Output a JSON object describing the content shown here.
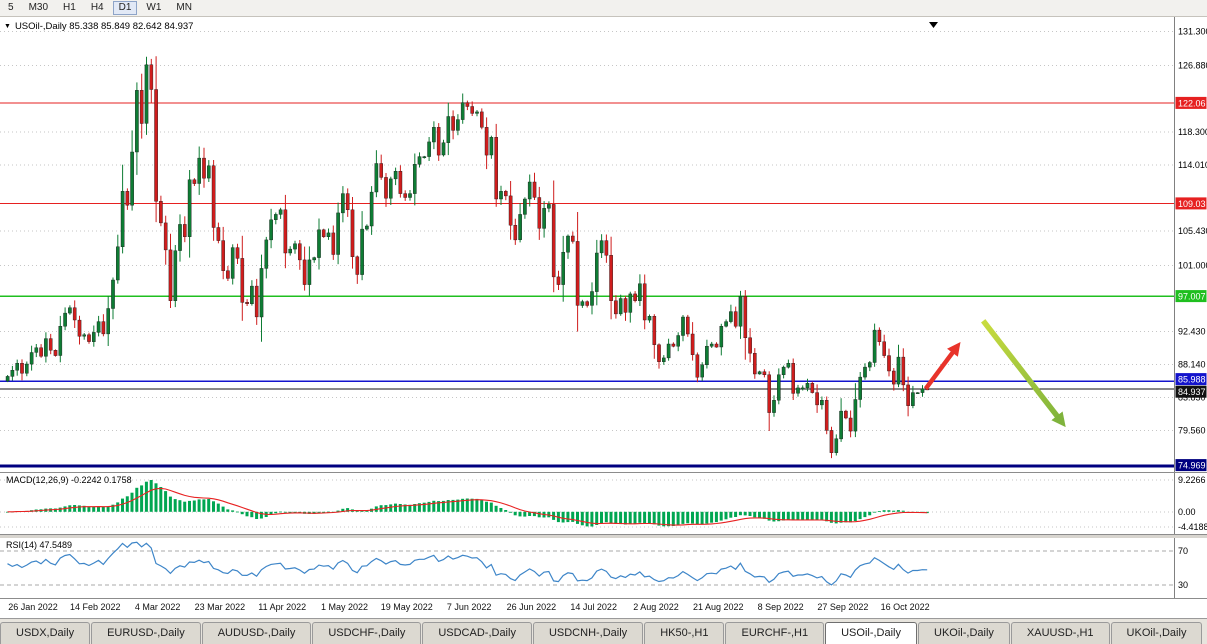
{
  "toolbar": {
    "periods": [
      "5",
      "M30",
      "H1",
      "H4",
      "D1",
      "W1",
      "MN"
    ],
    "active_index": 4
  },
  "chart": {
    "title_line": "USOil-,Daily 85.338 85.849 82.642 84.937"
  },
  "chart_data": {
    "type": "candlestick",
    "symbol": "USOil-",
    "timeframe": "Daily",
    "ohlc": {
      "open": 85.338,
      "high": 85.849,
      "low": 82.642,
      "close": 84.937
    },
    "y_range": [
      74.2,
      133.2
    ],
    "y_axis_ticks": [
      131.3,
      126.88,
      118.3,
      114.01,
      105.43,
      101.0,
      92.43,
      88.14,
      83.85,
      79.56
    ],
    "x_labels": [
      "26 Jan 2022",
      "14 Feb 2022",
      "4 Mar 2022",
      "23 Mar 2022",
      "11 Apr 2022",
      "1 May 2022",
      "19 May 2022",
      "7 Jun 2022",
      "26 Jun 2022",
      "14 Jul 2022",
      "2 Aug 2022",
      "21 Aug 2022",
      "8 Sep 2022",
      "27 Sep 2022",
      "16 Oct 2022"
    ],
    "closes": [
      86.6,
      87.4,
      88.3,
      87.0,
      88.2,
      89.7,
      90.3,
      89.2,
      91.5,
      90.0,
      89.3,
      93.1,
      94.8,
      95.5,
      93.9,
      91.8,
      92.0,
      91.1,
      92.3,
      93.7,
      92.1,
      95.4,
      99.1,
      103.4,
      110.6,
      108.8,
      115.7,
      123.7,
      119.4,
      127.0,
      123.8,
      109.3,
      106.5,
      103.0,
      96.4,
      102.9,
      106.3,
      104.7,
      112.1,
      111.6,
      114.9,
      112.3,
      113.9,
      105.9,
      104.2,
      100.3,
      99.3,
      103.3,
      101.9,
      96.2,
      96.0,
      98.3,
      94.3,
      100.6,
      104.3,
      106.9,
      107.6,
      108.2,
      102.6,
      103.1,
      103.8,
      101.7,
      98.5,
      101.7,
      102.0,
      105.6,
      104.7,
      105.2,
      102.4,
      107.8,
      110.3,
      108.2,
      102.1,
      99.8,
      105.7,
      106.1,
      110.5,
      114.2,
      112.4,
      109.7,
      112.2,
      113.2,
      110.3,
      109.8,
      110.3,
      114.1,
      115.1,
      115.1,
      117.0,
      118.9,
      115.3,
      116.9,
      120.3,
      118.5,
      119.9,
      122.1,
      121.6,
      120.7,
      120.9,
      118.9,
      115.3,
      117.6,
      109.6,
      110.6,
      110.0,
      106.2,
      104.3,
      107.6,
      109.6,
      111.8,
      109.8,
      105.8,
      108.4,
      108.9,
      99.5,
      98.5,
      102.7,
      104.8,
      104.1,
      95.8,
      96.3,
      95.8,
      97.6,
      102.6,
      104.2,
      102.3,
      96.4,
      94.7,
      96.7,
      94.9,
      97.3,
      96.4,
      98.6,
      93.9,
      94.4,
      90.7,
      88.5,
      89.0,
      90.8,
      90.5,
      91.9,
      94.3,
      92.1,
      89.4,
      86.5,
      88.1,
      90.5,
      90.8,
      90.4,
      93.1,
      93.7,
      95.0,
      93.1,
      97.0,
      91.6,
      89.6,
      86.9,
      87.2,
      86.8,
      81.9,
      83.5,
      86.8,
      87.8,
      88.3,
      84.4,
      85.1,
      85.1,
      85.7,
      84.5,
      82.9,
      83.5,
      79.6,
      76.7,
      78.5,
      82.1,
      81.2,
      79.5,
      83.6,
      86.5,
      87.8,
      88.4,
      92.6,
      91.1,
      89.3,
      87.3,
      85.6,
      89.1,
      85.5,
      82.8,
      84.5,
      84.5,
      85.0,
      84.937
    ],
    "levels": [
      {
        "value": 122.06,
        "label": "122.06",
        "color": "#e62020",
        "width": 1.3,
        "badge_dy": 0
      },
      {
        "value": 109.03,
        "label": "109.03",
        "color": "#e62020",
        "width": 1.3,
        "badge_dy": 0
      },
      {
        "value": 97.007,
        "label": "97.007",
        "color": "#1fbf1f",
        "width": 1.5,
        "badge_dy": 0
      },
      {
        "value": 85.988,
        "label": "85.988",
        "color": "#1414cc",
        "width": 1.3,
        "badge_dy": -2
      },
      {
        "value": 84.937,
        "label": "84.937",
        "color": "#111111",
        "width": 1.0,
        "badge_dy": 2.5
      },
      {
        "value": 74.969,
        "label": "74.969",
        "color": "#000080",
        "width": 3.0,
        "badge_dy": -1
      }
    ],
    "arrows": [
      {
        "name": "bullish-arrow",
        "from_bar": 192,
        "from_price": 85.0,
        "to_bar": 198.6,
        "to_price": 90.5,
        "color": "#e8332a",
        "width": 4.5
      },
      {
        "name": "bearish-arrow",
        "from_bar": 204,
        "from_price": 93.8,
        "to_bar": 220.5,
        "to_price": 80.6,
        "color_start": "#c9dc3e",
        "color_end": "#7fb33c",
        "width": 5.5
      }
    ],
    "colors": {
      "up": "#0e7c34",
      "down": "#cf1d1d",
      "macd_hist": "#00a651",
      "macd_signal": "#e82222",
      "rsi_line": "#3d85c8"
    },
    "indicators": [
      {
        "name": "MACD",
        "label": "MACD(12,26,9) -0.2242 0.1758",
        "axis": [
          {
            "v": 9.2266,
            "t": "9.2266"
          },
          {
            "v": 0,
            "t": "0.00"
          },
          {
            "v": -4.4188,
            "t": "-4.4188"
          }
        ]
      },
      {
        "name": "RSI",
        "label": "RSI(14) 47.5489",
        "axis": [
          {
            "v": 70,
            "t": "70"
          },
          {
            "v": 30,
            "t": "30"
          }
        ]
      }
    ]
  },
  "tabs": {
    "items": [
      "USDX,Daily",
      "EURUSD-,Daily",
      "AUDUSD-,Daily",
      "USDCHF-,Daily",
      "USDCAD-,Daily",
      "USDCNH-,Daily",
      "HK50-,H1",
      "EURCHF-,H1",
      "USOil-,Daily",
      "UKOil-,Daily",
      "XAUUSD-,H1",
      "UKOil-,Daily"
    ],
    "active_index": 8
  }
}
